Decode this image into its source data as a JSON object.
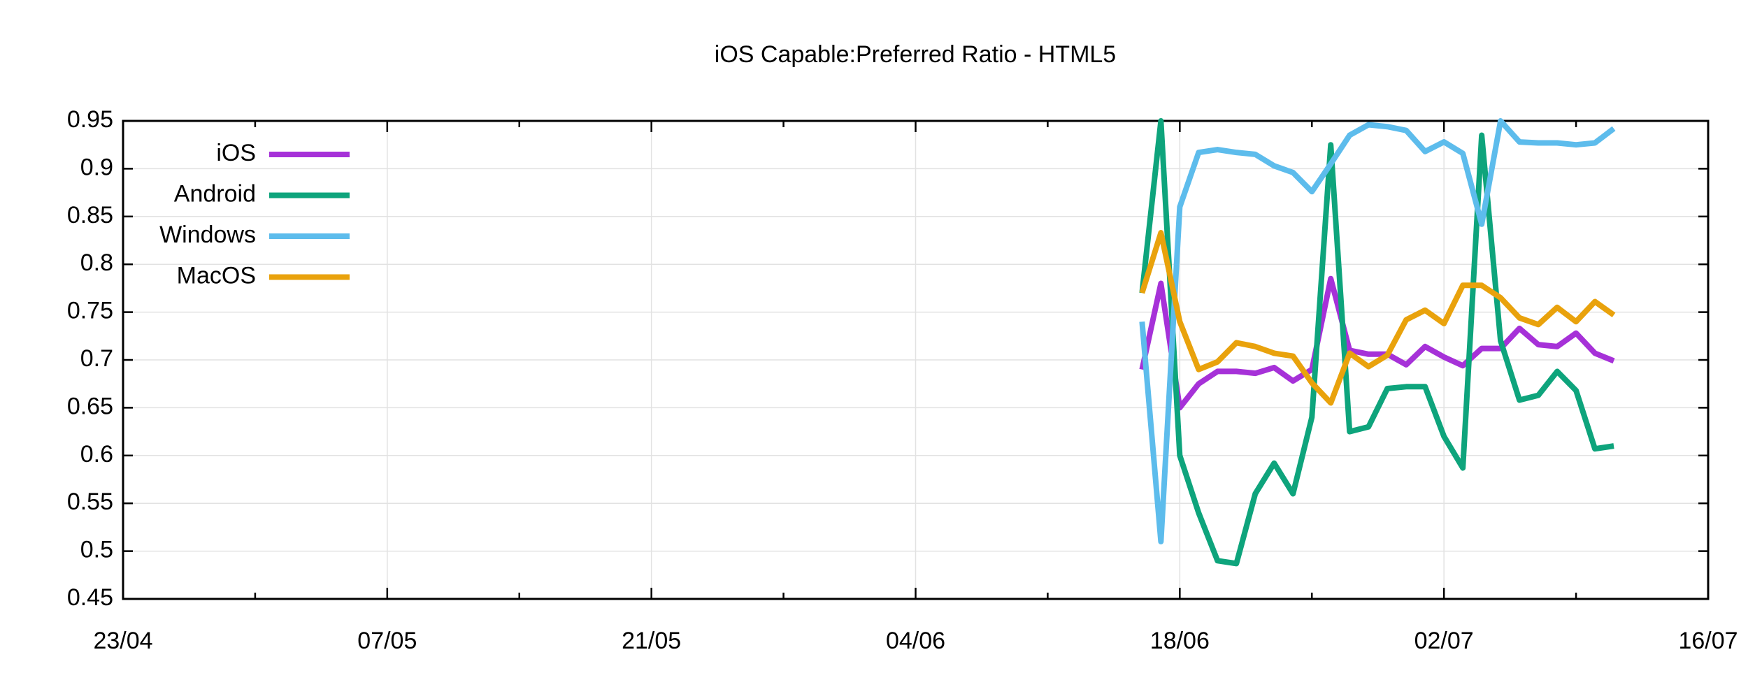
{
  "chart_data": {
    "type": "line",
    "title": "iOS Capable:Preferred Ratio - HTML5",
    "x": [
      "16/06",
      "17/06",
      "18/06",
      "19/06",
      "20/06",
      "21/06",
      "22/06",
      "23/06",
      "24/06",
      "25/06",
      "26/06",
      "27/06",
      "28/06",
      "29/06",
      "30/06",
      "01/07",
      "02/07",
      "03/07",
      "04/07",
      "05/07",
      "06/07",
      "07/07",
      "08/07",
      "09/07",
      "10/07",
      "11/07"
    ],
    "series": [
      {
        "name": "iOS",
        "color": "#a631d8",
        "values": [
          0.69,
          0.78,
          0.65,
          0.675,
          0.688,
          0.688,
          0.686,
          0.692,
          0.678,
          0.69,
          0.785,
          0.71,
          0.706,
          0.706,
          0.695,
          0.714,
          0.703,
          0.694,
          0.712,
          0.712,
          0.733,
          0.716,
          0.714,
          0.728,
          0.707,
          0.699
        ]
      },
      {
        "name": "Android",
        "color": "#0ea47c",
        "values": [
          0.77,
          0.95,
          0.6,
          0.54,
          0.49,
          0.487,
          0.56,
          0.592,
          0.56,
          0.64,
          0.925,
          0.625,
          0.63,
          0.67,
          0.672,
          0.672,
          0.62,
          0.587,
          0.935,
          0.72,
          0.658,
          0.663,
          0.688,
          0.668,
          0.607,
          0.61
        ]
      },
      {
        "name": "Windows",
        "color": "#5dbcec",
        "values": [
          0.74,
          0.51,
          0.86,
          0.917,
          0.92,
          0.917,
          0.915,
          0.903,
          0.896,
          0.876,
          0.905,
          0.935,
          0.946,
          0.944,
          0.94,
          0.918,
          0.928,
          0.916,
          0.842,
          0.95,
          0.928,
          0.927,
          0.927,
          0.925,
          0.927,
          0.942
        ]
      },
      {
        "name": "MacOS",
        "color": "#e9a20c",
        "values": [
          0.77,
          0.833,
          0.74,
          0.69,
          0.698,
          0.718,
          0.714,
          0.707,
          0.704,
          0.676,
          0.655,
          0.707,
          0.693,
          0.705,
          0.742,
          0.752,
          0.738,
          0.778,
          0.778,
          0.765,
          0.744,
          0.737,
          0.755,
          0.74,
          0.761,
          0.747
        ]
      }
    ],
    "xlim": [
      "23/04",
      "16/07"
    ],
    "xticks": [
      "23/04",
      "07/05",
      "21/05",
      "04/06",
      "18/06",
      "02/07",
      "16/07"
    ],
    "ylim": [
      0.45,
      0.95
    ],
    "yticks": [
      0.45,
      0.5,
      0.55,
      0.6,
      0.65,
      0.7,
      0.75,
      0.8,
      0.85,
      0.9,
      0.95
    ],
    "grid": true,
    "legend": "upper left"
  }
}
